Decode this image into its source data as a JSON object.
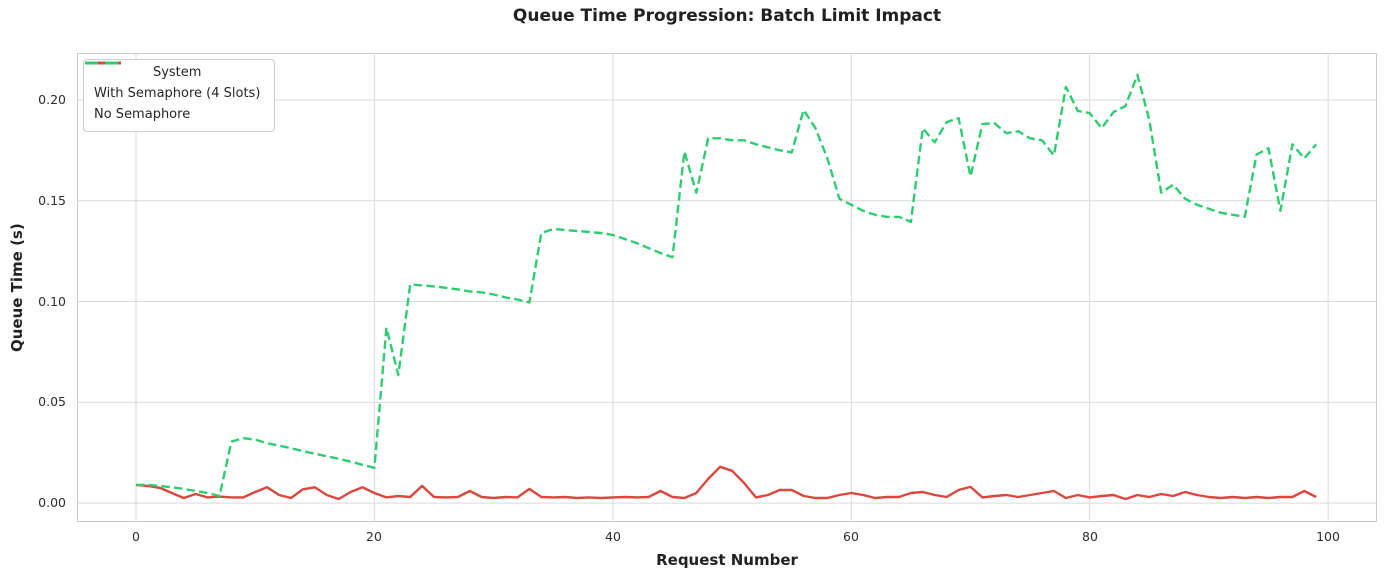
{
  "chart_data": {
    "type": "line",
    "title": "Queue Time Progression: Batch Limit Impact",
    "xlabel": "Request Number",
    "ylabel": "Queue Time (s)",
    "grid": true,
    "background": "#ffffff",
    "grid_color": "#d9d9d9",
    "axes_edge_color": "#c9c9c9",
    "legend": {
      "title": "System",
      "position": "upper left"
    },
    "x_ticks": [
      0,
      20,
      40,
      60,
      80,
      100
    ],
    "x_tick_labels": [
      "0",
      "20",
      "40",
      "60",
      "80",
      "100"
    ],
    "y_ticks": [
      0.0,
      0.05,
      0.1,
      0.15,
      0.2
    ],
    "y_tick_labels": [
      "0.00",
      "0.05",
      "0.10",
      "0.15",
      "0.20"
    ],
    "xlim": [
      -4.95,
      104.1
    ],
    "ylim": [
      -0.0094,
      0.2233
    ],
    "x_is_index": true,
    "series": [
      {
        "name": "With Semaphore (4 Slots)",
        "color": "#d9473d",
        "style": "solid",
        "values": [
          0.009,
          0.0085,
          0.0075,
          0.005,
          0.0025,
          0.0045,
          0.0028,
          0.0032,
          0.0028,
          0.0028,
          0.0055,
          0.0078,
          0.004,
          0.0025,
          0.0068,
          0.0078,
          0.004,
          0.002,
          0.0055,
          0.0078,
          0.005,
          0.0028,
          0.0035,
          0.003,
          0.0085,
          0.003,
          0.0028,
          0.003,
          0.006,
          0.003,
          0.0025,
          0.003,
          0.0028,
          0.007,
          0.003,
          0.0028,
          0.003,
          0.0025,
          0.0028,
          0.0025,
          0.0028,
          0.003,
          0.0028,
          0.003,
          0.006,
          0.003,
          0.0025,
          0.005,
          0.012,
          0.018,
          0.016,
          0.01,
          0.0028,
          0.004,
          0.0065,
          0.0065,
          0.0035,
          0.0025,
          0.0025,
          0.004,
          0.005,
          0.004,
          0.0025,
          0.003,
          0.003,
          0.005,
          0.0055,
          0.004,
          0.003,
          0.0065,
          0.008,
          0.0028,
          0.0035,
          0.004,
          0.003,
          0.004,
          0.005,
          0.006,
          0.0025,
          0.004,
          0.0028,
          0.0035,
          0.004,
          0.002,
          0.004,
          0.003,
          0.0045,
          0.0035,
          0.0055,
          0.004,
          0.003,
          0.0025,
          0.003,
          0.0025,
          0.003,
          0.0025,
          0.003,
          0.003,
          0.006,
          0.003
        ]
      },
      {
        "name": "No Semaphore",
        "color": "#2ecc71",
        "style": "dashed",
        "values": [
          0.009,
          0.009,
          0.0085,
          0.0078,
          0.007,
          0.006,
          0.005,
          0.0035,
          0.0305,
          0.0322,
          0.0315,
          0.0297,
          0.0285,
          0.0272,
          0.0258,
          0.0245,
          0.0232,
          0.022,
          0.0205,
          0.019,
          0.0175,
          0.087,
          0.0635,
          0.1085,
          0.108,
          0.1075,
          0.1068,
          0.106,
          0.105,
          0.1045,
          0.1035,
          0.102,
          0.101,
          0.0995,
          0.134,
          0.136,
          0.1355,
          0.135,
          0.1345,
          0.134,
          0.133,
          0.131,
          0.129,
          0.1265,
          0.124,
          0.122,
          0.1745,
          0.154,
          0.181,
          0.181,
          0.18,
          0.18,
          0.178,
          0.1765,
          0.175,
          0.174,
          0.195,
          0.186,
          0.171,
          0.151,
          0.148,
          0.145,
          0.143,
          0.142,
          0.142,
          0.1395,
          0.186,
          0.179,
          0.189,
          0.191,
          0.162,
          0.188,
          0.1885,
          0.1835,
          0.1845,
          0.181,
          0.18,
          0.1725,
          0.2065,
          0.1945,
          0.1935,
          0.186,
          0.194,
          0.197,
          0.2125,
          0.19,
          0.154,
          0.158,
          0.151,
          0.148,
          0.146,
          0.144,
          0.143,
          0.142,
          0.173,
          0.176,
          0.145,
          0.178,
          0.171,
          0.178
        ]
      }
    ]
  }
}
